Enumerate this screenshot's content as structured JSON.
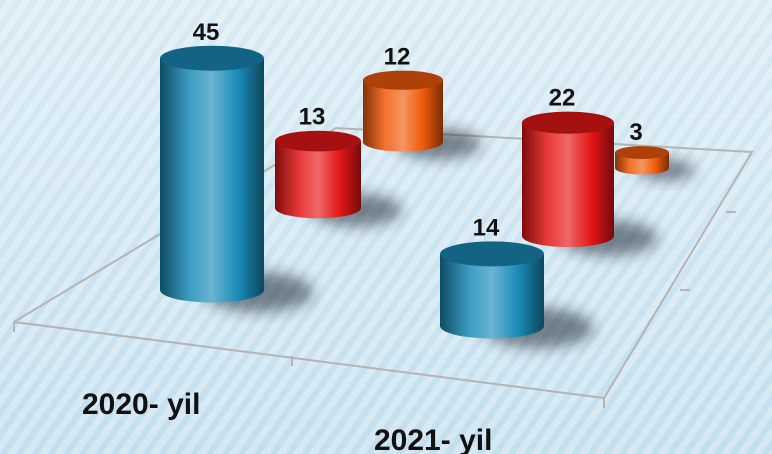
{
  "chart_data": {
    "type": "bar",
    "style": "3d-cylinder",
    "categories": [
      "2020- yil",
      "2021- yil"
    ],
    "series": [
      {
        "color": "#1a8bb8",
        "values": [
          45,
          14
        ]
      },
      {
        "color": "#e51616",
        "values": [
          13,
          22
        ]
      },
      {
        "color": "#f05a0a",
        "values": [
          12,
          3
        ]
      }
    ],
    "title": "",
    "xlabel": "",
    "ylabel": "",
    "grid": false,
    "legend": "none"
  }
}
